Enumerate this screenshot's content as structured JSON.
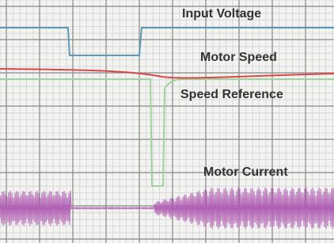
{
  "labels": {
    "input_voltage": "Input Voltage",
    "motor_speed": "Motor Speed",
    "speed_reference": "Speed Reference",
    "motor_current": "Motor Current"
  }
}
